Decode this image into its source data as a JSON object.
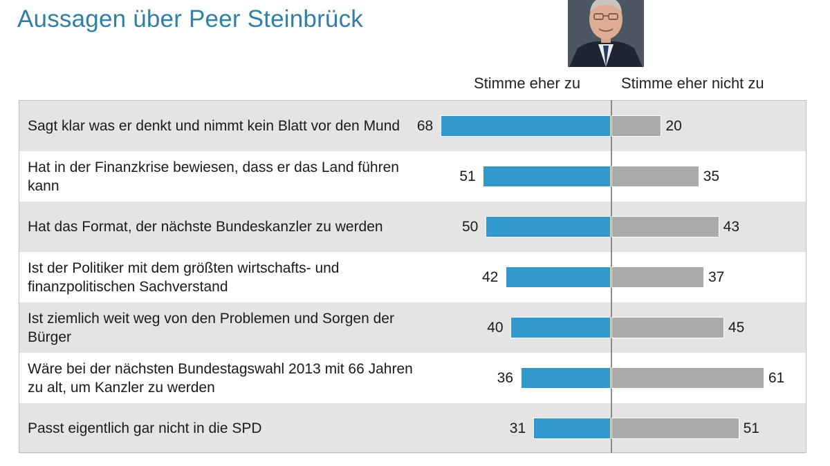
{
  "title": "Aussagen über Peer Steinbrück",
  "portrait_icon": "person-portrait-icon",
  "colors": {
    "agree": "#3399cc",
    "disagree": "#aaaaaa",
    "title": "#2f7fa6",
    "row_shade": "#e4e4e4"
  },
  "chart_data": {
    "type": "bar",
    "orientation": "horizontal-diverging",
    "title": "Aussagen über Peer Steinbrück",
    "unit": "%",
    "series": [
      {
        "name": "Stimme eher zu",
        "values": [
          68,
          51,
          50,
          42,
          40,
          36,
          31
        ]
      },
      {
        "name": "Stimme eher nicht zu",
        "values": [
          20,
          35,
          43,
          37,
          45,
          61,
          51
        ]
      }
    ],
    "categories": [
      "Sagt klar was er denkt und nimmt kein Blatt vor den Mund",
      "Hat in der Finanzkrise bewiesen, dass er das Land führen kann",
      "Hat das Format, der nächste Bundeskanzler zu werden",
      "Ist der Politiker mit dem größten wirtschafts- und finanzpolitischen Sachverstand",
      "Ist ziemlich weit weg von den Problemen und Sorgen der Bürger",
      "Wäre bei der nächsten Bundestagswahl 2013 mit 66 Jahren zu alt, um Kanzler zu werden",
      "Passt eigentlich gar nicht in die SPD"
    ],
    "xlim": [
      -70,
      70
    ],
    "grid": false
  }
}
